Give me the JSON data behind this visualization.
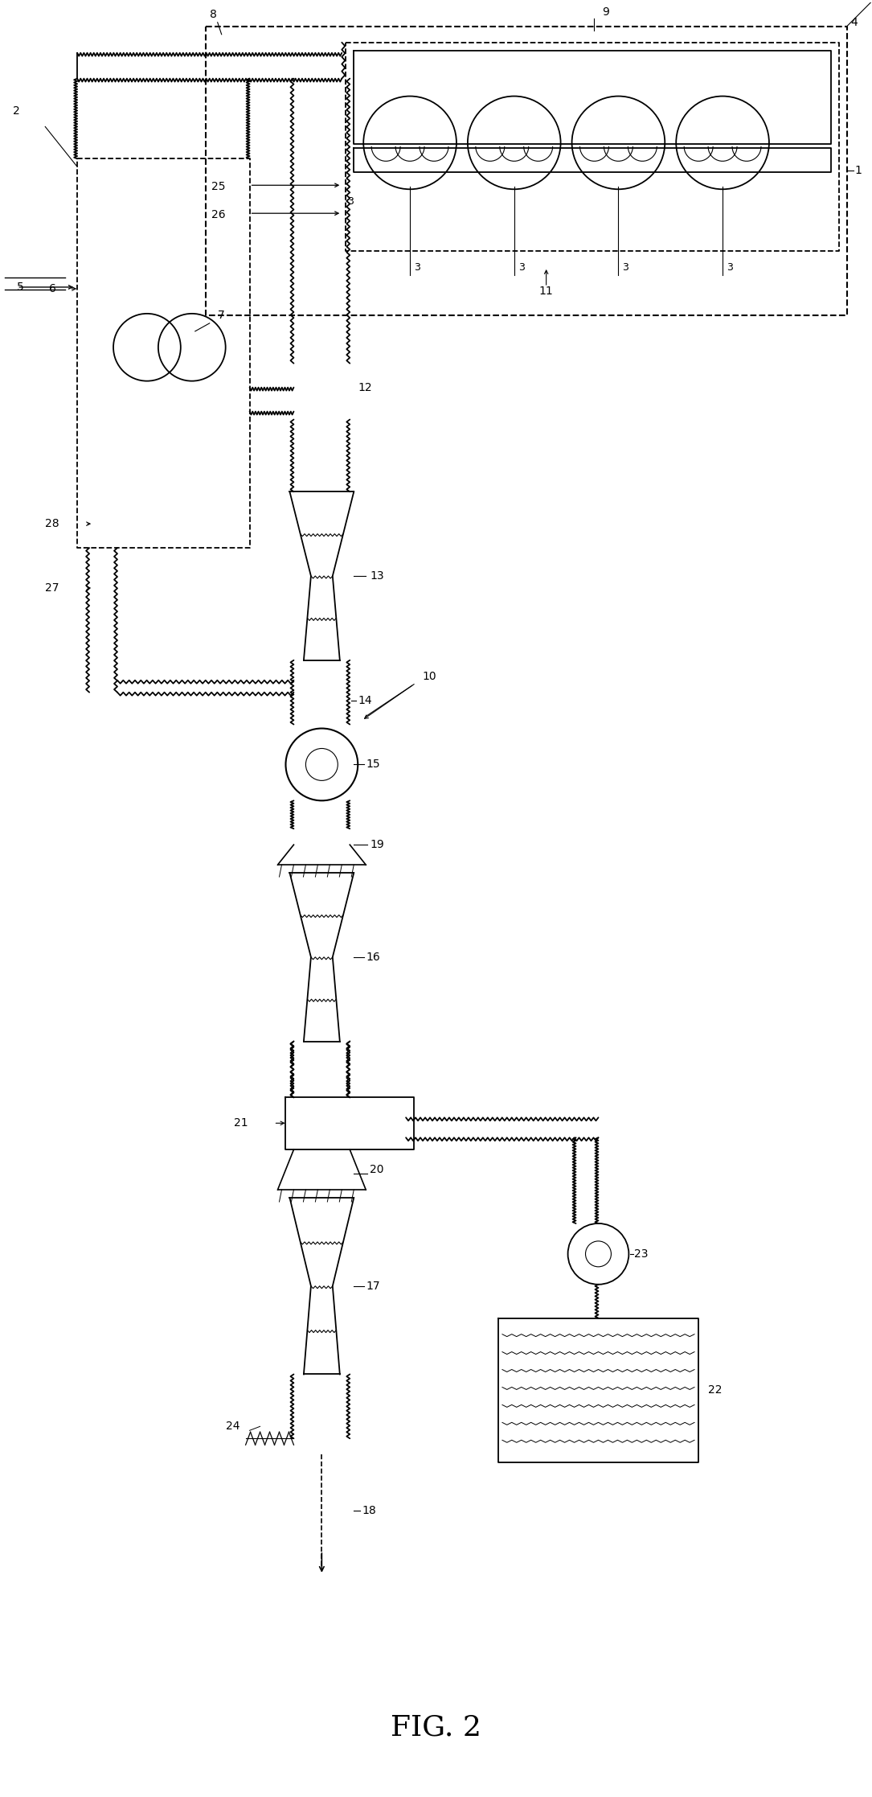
{
  "title": "FIG. 2",
  "bg_color": "#ffffff",
  "line_color": "#000000",
  "fig_width": 10.85,
  "fig_height": 22.34,
  "dpi": 100
}
